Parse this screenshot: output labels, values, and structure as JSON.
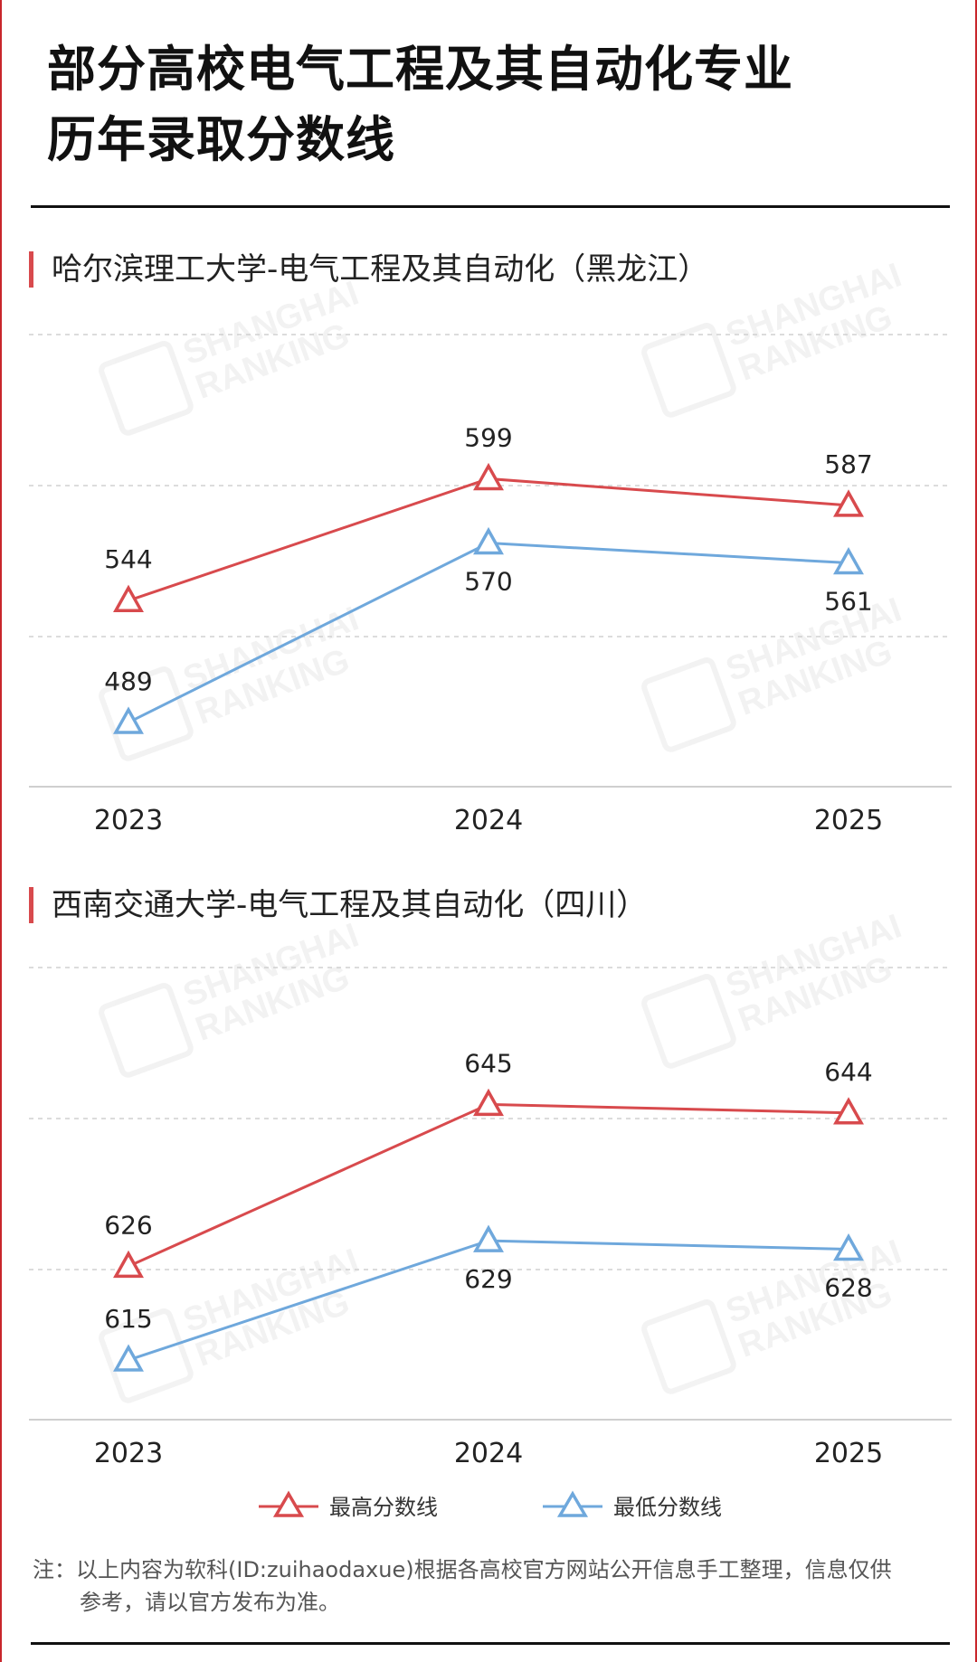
{
  "title_line1": "部分高校电气工程及其自动化专业",
  "title_line2": "历年录取分数线",
  "watermark": {
    "line1": "SHANGHAI",
    "line2": "RANKING"
  },
  "legend": {
    "high": "最高分数线",
    "low": "最低分数线"
  },
  "colors": {
    "high": "#d84a4d",
    "low": "#6fa8dc"
  },
  "note": {
    "line1": "注：以上内容为软科(ID:zuihaodaxue)根据各高校官方网站公开信息手工整理，信息仅供",
    "line2": "参考，请以官方发布为准。"
  },
  "chart_data": [
    {
      "type": "line",
      "title": "哈尔滨理工大学-电气工程及其自动化（黑龙江）",
      "categories": [
        "2023",
        "2024",
        "2025"
      ],
      "series": [
        {
          "name": "最高分数线",
          "values": [
            544,
            599,
            587
          ]
        },
        {
          "name": "最低分数线",
          "values": [
            489,
            570,
            561
          ]
        }
      ],
      "ylim": [
        460,
        660
      ],
      "grid": true,
      "legend": "bottom"
    },
    {
      "type": "line",
      "title": "西南交通大学-电气工程及其自动化（四川）",
      "categories": [
        "2023",
        "2024",
        "2025"
      ],
      "series": [
        {
          "name": "最高分数线",
          "values": [
            626,
            645,
            644
          ]
        },
        {
          "name": "最低分数线",
          "values": [
            615,
            629,
            628
          ]
        }
      ],
      "ylim": [
        608,
        660
      ],
      "grid": true,
      "legend": "bottom"
    }
  ]
}
